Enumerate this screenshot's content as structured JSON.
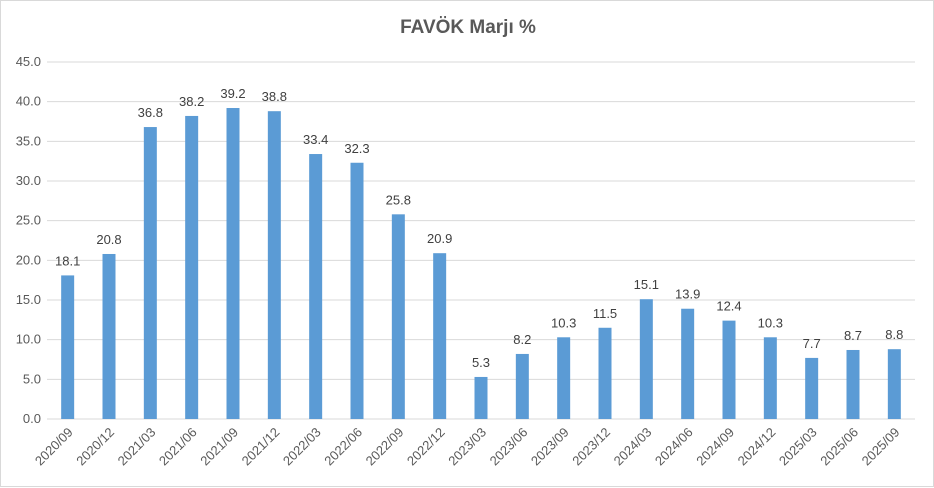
{
  "chart_data": {
    "type": "bar",
    "title": "FAVÖK Marjı %",
    "xlabel": "",
    "ylabel": "",
    "categories": [
      "2020/09",
      "2020/12",
      "2021/03",
      "2021/06",
      "2021/09",
      "2021/12",
      "2022/03",
      "2022/06",
      "2022/09",
      "2022/12",
      "2023/03",
      "2023/06",
      "2023/09",
      "2023/12",
      "2024/03",
      "2024/06",
      "2024/09",
      "2024/12",
      "2025/03",
      "2025/06",
      "2025/09"
    ],
    "values": [
      18.1,
      20.8,
      36.8,
      38.2,
      39.2,
      38.8,
      33.4,
      32.3,
      25.8,
      20.9,
      5.3,
      8.2,
      10.3,
      11.5,
      15.1,
      13.9,
      12.4,
      10.3,
      7.7,
      8.7,
      8.8
    ],
    "value_labels": [
      "18.1",
      "20.8",
      "36.8",
      "38.2",
      "39.2",
      "38.8",
      "33.4",
      "32.3",
      "25.8",
      "20.9",
      "5.3",
      "8.2",
      "10.3",
      "11.5",
      "15.1",
      "13.9",
      "12.4",
      "10.3",
      "7.7",
      "8.7",
      "8.8"
    ],
    "ylim": [
      0,
      45
    ],
    "yticks": [
      "0.0",
      "5.0",
      "10.0",
      "15.0",
      "20.0",
      "25.0",
      "30.0",
      "35.0",
      "40.0",
      "45.0"
    ],
    "grid": true,
    "legend": "none",
    "bar_color": "#5B9BD5",
    "grid_color": "#d9d9d9",
    "text_color": "#595959"
  }
}
